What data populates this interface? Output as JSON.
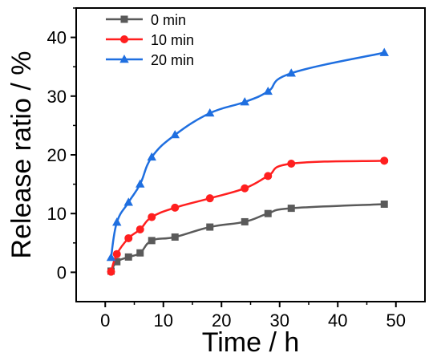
{
  "chart_data": {
    "type": "line",
    "title": "",
    "xlabel": "Time / h",
    "ylabel": "Release ratio / %",
    "xlim": [
      -5,
      55
    ],
    "ylim": [
      -5,
      45
    ],
    "xticks": [
      0,
      10,
      20,
      30,
      40,
      50
    ],
    "yticks": [
      0,
      10,
      20,
      30,
      40
    ],
    "x_tick_labels": [
      "0",
      "10",
      "20",
      "30",
      "40",
      "50"
    ],
    "y_tick_labels": [
      "0",
      "10",
      "20",
      "30",
      "40"
    ],
    "grid": false,
    "legend_position": "top-left",
    "series": [
      {
        "name": "0 min",
        "color": "#5a5a5a",
        "marker": "square",
        "x": [
          1,
          2,
          4,
          6,
          8,
          12,
          18,
          24,
          28,
          32,
          48
        ],
        "y": [
          0.2,
          1.8,
          2.6,
          3.3,
          5.4,
          6.0,
          7.7,
          8.6,
          10.0,
          10.9,
          11.6
        ]
      },
      {
        "name": "10 min",
        "color": "#ff1f1f",
        "marker": "circle",
        "x": [
          1,
          2,
          4,
          6,
          8,
          12,
          18,
          24,
          28,
          32,
          48
        ],
        "y": [
          0.1,
          3.1,
          5.8,
          7.3,
          9.4,
          11.0,
          12.6,
          14.3,
          16.4,
          18.5,
          19.0
        ]
      },
      {
        "name": "20 min",
        "color": "#1f6fe0",
        "marker": "triangle",
        "x": [
          1,
          2,
          4,
          6,
          8,
          12,
          18,
          24,
          28,
          32,
          48
        ],
        "y": [
          2.5,
          8.5,
          11.9,
          15.0,
          19.6,
          23.4,
          27.1,
          29.0,
          30.8,
          33.9,
          37.4
        ]
      }
    ]
  }
}
